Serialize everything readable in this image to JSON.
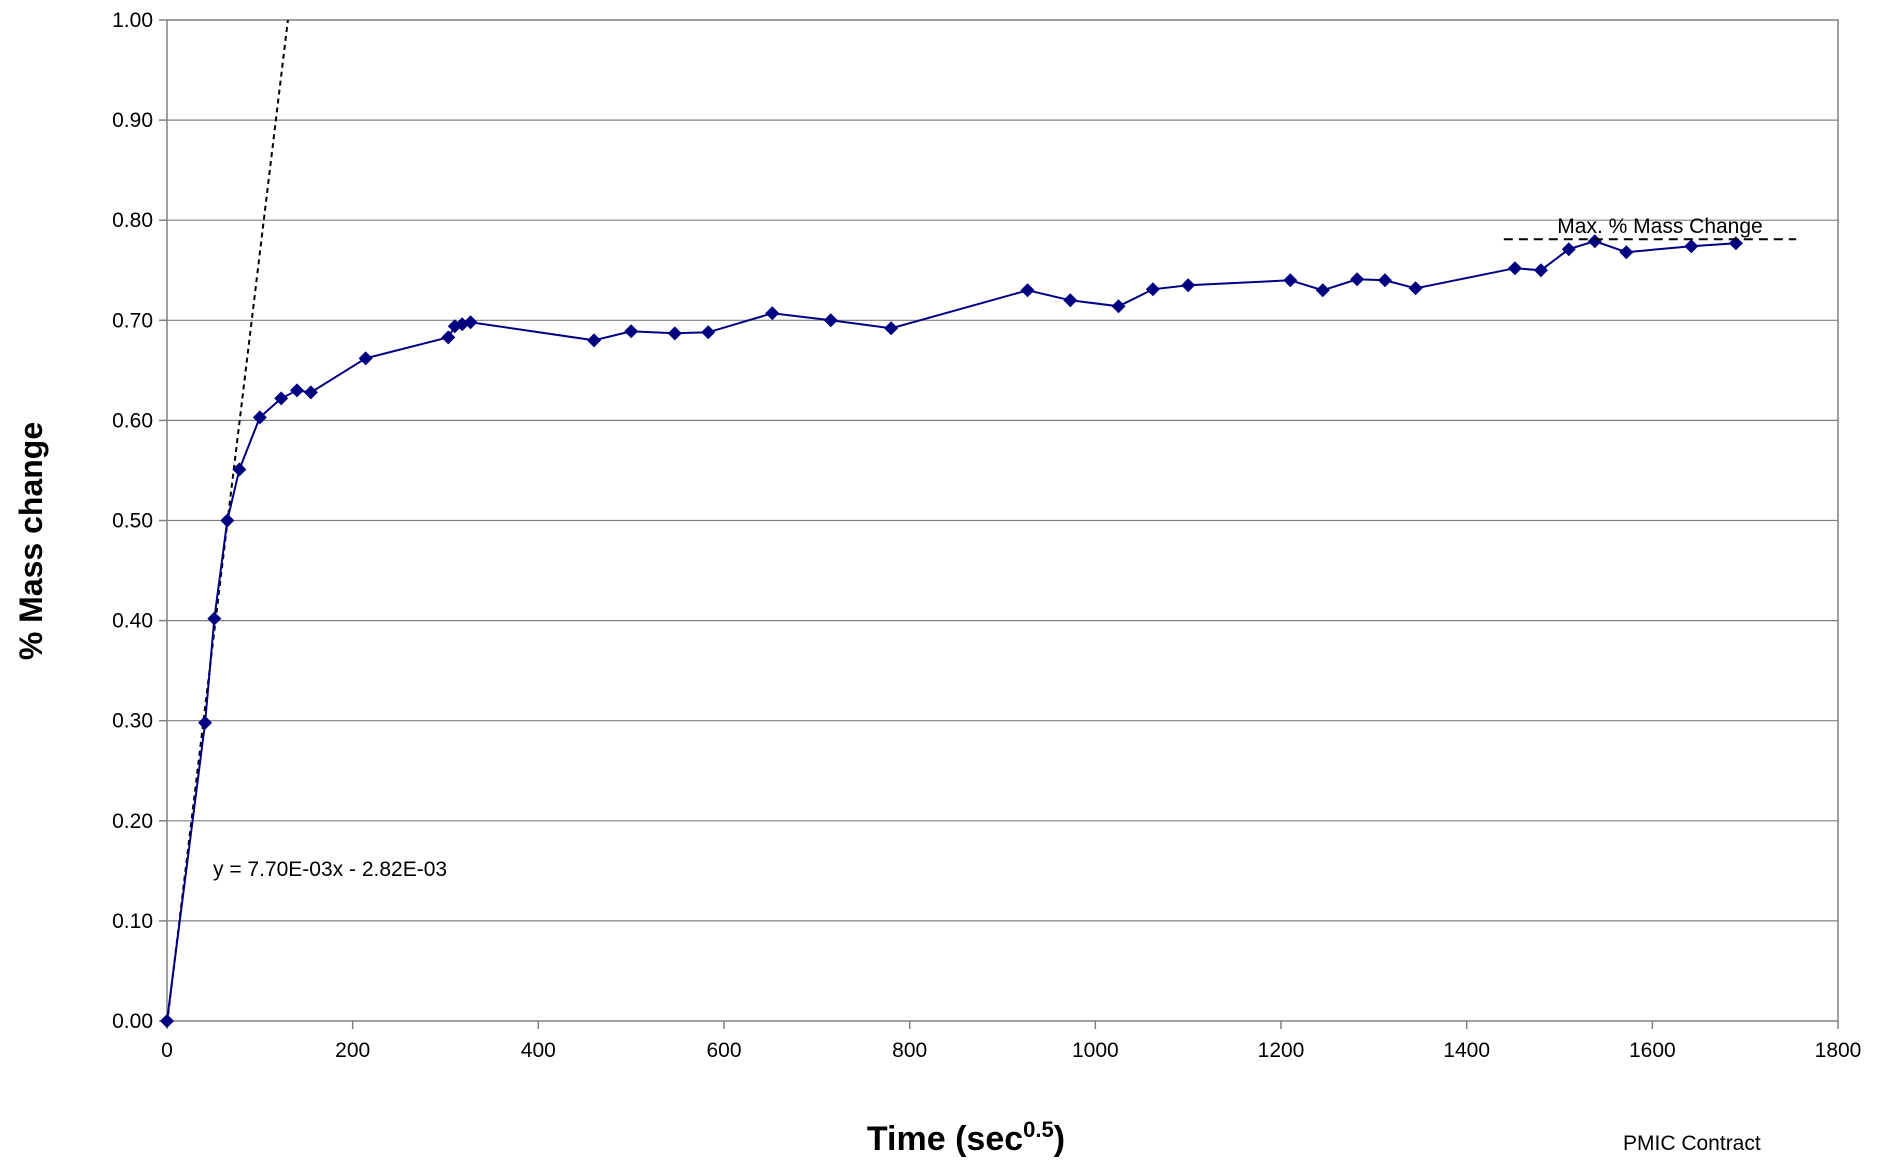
{
  "chart_data": {
    "type": "scatter",
    "xlabel": "Time (sec",
    "xlabel_sup": "0.5",
    "xlabel_close": ")",
    "ylabel": "% Mass change",
    "xlim": [
      0,
      1800
    ],
    "ylim": [
      0,
      1.0
    ],
    "x_ticks": [
      "0",
      "200",
      "400",
      "600",
      "800",
      "1000",
      "1200",
      "1400",
      "1600",
      "1800"
    ],
    "y_ticks": [
      "0.00",
      "0.10",
      "0.20",
      "0.30",
      "0.40",
      "0.50",
      "0.60",
      "0.70",
      "0.80",
      "0.90",
      "1.00"
    ],
    "grid": true,
    "series": [
      {
        "color": "#000080",
        "marker": "diamond",
        "points": [
          {
            "x": 0,
            "y": 0.0
          },
          {
            "x": 41,
            "y": 0.298
          },
          {
            "x": 51,
            "y": 0.402
          },
          {
            "x": 65,
            "y": 0.5
          },
          {
            "x": 78,
            "y": 0.551
          },
          {
            "x": 100,
            "y": 0.603
          },
          {
            "x": 123,
            "y": 0.622
          },
          {
            "x": 140,
            "y": 0.63
          },
          {
            "x": 155,
            "y": 0.628
          },
          {
            "x": 214,
            "y": 0.662
          },
          {
            "x": 303,
            "y": 0.683
          },
          {
            "x": 310,
            "y": 0.694
          },
          {
            "x": 318,
            "y": 0.696
          },
          {
            "x": 327,
            "y": 0.698
          },
          {
            "x": 460,
            "y": 0.68
          },
          {
            "x": 500,
            "y": 0.689
          },
          {
            "x": 547,
            "y": 0.687
          },
          {
            "x": 583,
            "y": 0.688
          },
          {
            "x": 652,
            "y": 0.707
          },
          {
            "x": 715,
            "y": 0.7
          },
          {
            "x": 780,
            "y": 0.692
          },
          {
            "x": 927,
            "y": 0.73
          },
          {
            "x": 973,
            "y": 0.72
          },
          {
            "x": 1025,
            "y": 0.714
          },
          {
            "x": 1062,
            "y": 0.731
          },
          {
            "x": 1100,
            "y": 0.735
          },
          {
            "x": 1210,
            "y": 0.74
          },
          {
            "x": 1245,
            "y": 0.73
          },
          {
            "x": 1282,
            "y": 0.741
          },
          {
            "x": 1312,
            "y": 0.74
          },
          {
            "x": 1345,
            "y": 0.732
          },
          {
            "x": 1452,
            "y": 0.752
          },
          {
            "x": 1480,
            "y": 0.75
          },
          {
            "x": 1510,
            "y": 0.771
          },
          {
            "x": 1538,
            "y": 0.779
          },
          {
            "x": 1572,
            "y": 0.768
          },
          {
            "x": 1642,
            "y": 0.774
          },
          {
            "x": 1690,
            "y": 0.777
          }
        ]
      }
    ],
    "trendline": {
      "equation": "y = 7.70E-03x - 2.82E-03",
      "slope": 0.0077,
      "intercept": -0.00282,
      "style": "dashed",
      "color": "#000000"
    },
    "max_line": {
      "label": "Max. % Mass Change",
      "y": 0.781,
      "x_range": [
        1440,
        1755
      ],
      "style": "dashed"
    },
    "footer": "PMIC Contract"
  }
}
